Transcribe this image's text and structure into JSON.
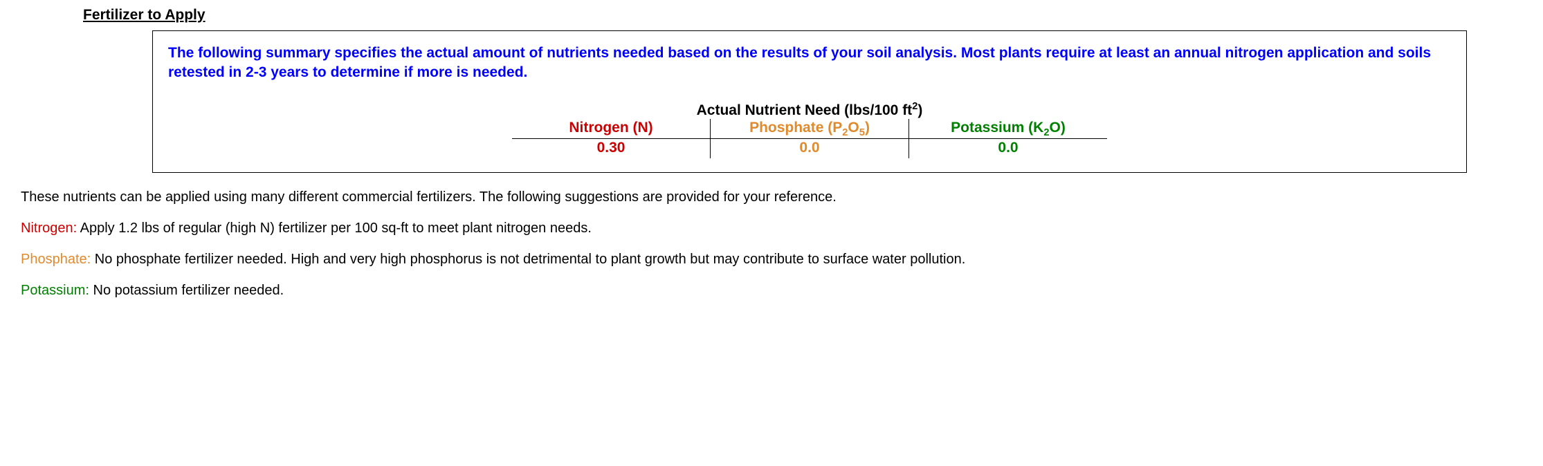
{
  "colors": {
    "nitrogen": "#cc0000",
    "phosphate": "#e08a2c",
    "potassium": "#008000",
    "summary_text": "#0000ff",
    "body_text": "#000000",
    "border": "#000000",
    "background": "#ffffff"
  },
  "header": {
    "title": "Fertilizer to Apply"
  },
  "summary": {
    "text": "The following summary specifies the actual amount of nutrients needed based on the results of your soil analysis. Most plants require at least an annual nitrogen application and soils retested in 2-3 years to determine if more is needed."
  },
  "nutrient_table": {
    "title_prefix": "Actual Nutrient Need (lbs/100 ft",
    "title_suffix": ")",
    "columns": {
      "nitrogen": {
        "label": "Nitrogen (N)",
        "value": "0.30"
      },
      "phosphate": {
        "label_pre": "Phosphate (P",
        "label_sub1": "2",
        "label_mid": "O",
        "label_sub2": "5",
        "label_post": ")",
        "value": "0.0"
      },
      "potassium": {
        "label_pre": "Potassium (K",
        "label_sub": "2",
        "label_post": "O)",
        "value": "0.0"
      }
    }
  },
  "body": {
    "intro": "These nutrients can be applied using many different commercial fertilizers. The following suggestions are provided for your reference."
  },
  "recommendations": {
    "nitrogen": {
      "label": "Nitrogen:",
      "text": " Apply 1.2 lbs of regular (high N) fertilizer per 100 sq-ft to meet plant nitrogen needs."
    },
    "phosphate": {
      "label": "Phosphate:",
      "text": " No phosphate fertilizer needed. High and very high phosphorus is not detrimental to plant growth but may contribute to surface water pollution."
    },
    "potassium": {
      "label": "Potassium:",
      "text": " No potassium fertilizer needed."
    }
  }
}
